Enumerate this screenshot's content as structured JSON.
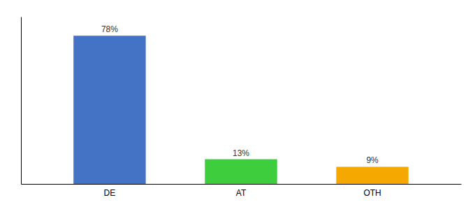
{
  "chart_data": {
    "type": "bar",
    "categories": [
      "DE",
      "AT",
      "OTH"
    ],
    "values": [
      78,
      13,
      9
    ],
    "value_labels": [
      "78%",
      "13%",
      "9%"
    ],
    "data_labels": true,
    "colors": [
      "#4472c4",
      "#3dcd3d",
      "#f5a800"
    ],
    "ylim": [
      0,
      88
    ],
    "tick_labels": "x"
  }
}
